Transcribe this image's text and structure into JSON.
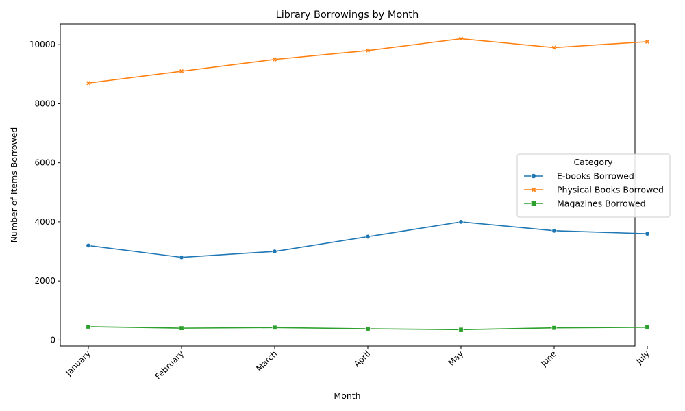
{
  "chart_data": {
    "type": "line",
    "title": "Library Borrowings by Month",
    "xlabel": "Month",
    "ylabel": "Number of Items Borrowed",
    "categories": [
      "January",
      "February",
      "March",
      "April",
      "May",
      "June",
      "July"
    ],
    "ylim": [
      -200,
      10700
    ],
    "yticks": [
      0,
      2000,
      4000,
      6000,
      8000,
      10000
    ],
    "grid": false,
    "legend": {
      "title": "Category",
      "placement": "center-right"
    },
    "series": [
      {
        "name": "E-books Borrowed",
        "color": "#1f77b4",
        "marker": "circle",
        "values": [
          3200,
          2800,
          3000,
          3500,
          4000,
          3700,
          3600
        ]
      },
      {
        "name": "Physical Books Borrowed",
        "color": "#ff7f0e",
        "marker": "x",
        "values": [
          8700,
          9100,
          9500,
          9800,
          10200,
          9900,
          10100
        ]
      },
      {
        "name": "Magazines Borrowed",
        "color": "#2ca02c",
        "marker": "square",
        "values": [
          450,
          400,
          420,
          380,
          350,
          410,
          430
        ]
      }
    ]
  }
}
